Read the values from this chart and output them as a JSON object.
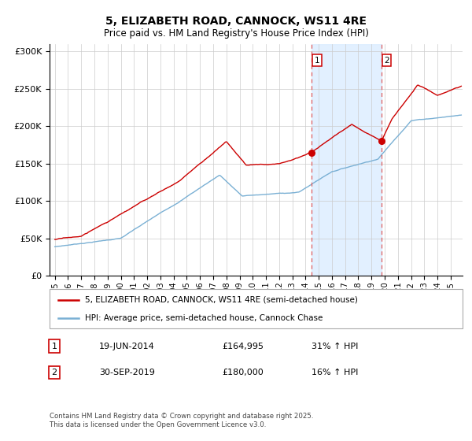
{
  "title": "5, ELIZABETH ROAD, CANNOCK, WS11 4RE",
  "subtitle": "Price paid vs. HM Land Registry's House Price Index (HPI)",
  "legend_line1": "5, ELIZABETH ROAD, CANNOCK, WS11 4RE (semi-detached house)",
  "legend_line2": "HPI: Average price, semi-detached house, Cannock Chase",
  "annotation1_date": "19-JUN-2014",
  "annotation1_price": "£164,995",
  "annotation1_hpi": "31% ↑ HPI",
  "annotation2_date": "30-SEP-2019",
  "annotation2_price": "£180,000",
  "annotation2_hpi": "16% ↑ HPI",
  "footer": "Contains HM Land Registry data © Crown copyright and database right 2025.\nThis data is licensed under the Open Government Licence v3.0.",
  "red_line_color": "#cc0000",
  "blue_line_color": "#7ab0d4",
  "shade_color": "#ddeeff",
  "dashed_line_color": "#e06060",
  "marker_color": "#cc0000",
  "bg_color": "#ffffff",
  "grid_color": "#cccccc",
  "ylim": [
    0,
    310000
  ],
  "yticks": [
    0,
    50000,
    100000,
    150000,
    200000,
    250000,
    300000
  ],
  "ytick_labels": [
    "£0",
    "£50K",
    "£100K",
    "£150K",
    "£200K",
    "£250K",
    "£300K"
  ],
  "sale1_year": 2014.46,
  "sale1_price": 164995,
  "sale2_year": 2019.75,
  "sale2_price": 180000,
  "xlim_left": 1994.6,
  "xlim_right": 2025.9
}
